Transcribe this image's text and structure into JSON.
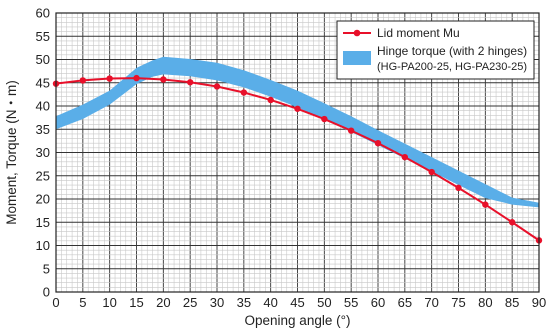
{
  "chart_data": {
    "type": "line",
    "xlabel": "Opening angle (°)",
    "ylabel": "Moment, Torque (N・m)",
    "xlim": [
      0,
      90
    ],
    "ylim": [
      0,
      60
    ],
    "xticks": [
      0,
      5,
      10,
      15,
      20,
      25,
      30,
      35,
      40,
      45,
      50,
      55,
      60,
      65,
      70,
      75,
      80,
      85,
      90
    ],
    "yticks": [
      0,
      5,
      10,
      15,
      20,
      25,
      30,
      35,
      40,
      45,
      50,
      55,
      60
    ],
    "grid": true,
    "legend_position": "top-right",
    "series": [
      {
        "name": "Lid moment Mu",
        "kind": "line-markers",
        "color": "#e8102a",
        "x": [
          0,
          5,
          10,
          15,
          20,
          25,
          30,
          35,
          40,
          45,
          50,
          55,
          60,
          65,
          70,
          75,
          80,
          85,
          90
        ],
        "y": [
          44.8,
          45.5,
          45.9,
          46.0,
          45.7,
          45.1,
          44.2,
          42.9,
          41.3,
          39.4,
          37.2,
          34.7,
          32.0,
          29.0,
          25.8,
          22.4,
          18.8,
          15.0,
          11.1
        ]
      }
    ],
    "band": {
      "name": "Hinge torque (with 2 hinges)",
      "name_line2": "(HG-PA200-25, HG-PA230-25)",
      "color": "#5aaee8",
      "x": [
        0,
        5,
        10,
        15,
        18,
        20,
        25,
        30,
        35,
        40,
        45,
        50,
        55,
        60,
        65,
        70,
        75,
        80,
        85,
        90
      ],
      "upper": [
        37.8,
        40.3,
        43.3,
        48.2,
        49.8,
        50.6,
        50.1,
        49.3,
        47.7,
        45.6,
        43.3,
        40.6,
        37.8,
        34.8,
        31.9,
        29.0,
        26.1,
        23.2,
        20.3,
        19.2
      ],
      "lower": [
        35.0,
        37.2,
        40.3,
        44.7,
        46.3,
        46.8,
        46.4,
        45.5,
        44.0,
        42.0,
        39.7,
        37.1,
        34.4,
        31.6,
        28.7,
        25.9,
        23.0,
        20.2,
        18.8,
        18.2
      ]
    }
  }
}
